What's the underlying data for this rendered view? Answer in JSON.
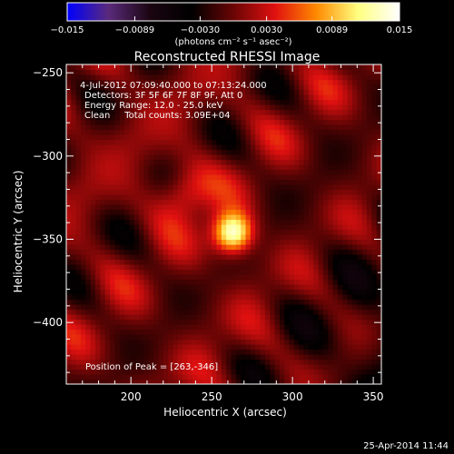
{
  "footer": {
    "timestamp": "25-Apr-2014 11:44"
  },
  "chart_data": {
    "type": "heatmap",
    "title": "Reconstructed RHESSI Image",
    "xlabel": "Heliocentric X (arcsec)",
    "ylabel": "Heliocentric Y (arcsec)",
    "xlim": [
      160,
      355
    ],
    "ylim": [
      -437,
      -245
    ],
    "x_ticks": [
      200,
      250,
      300,
      350
    ],
    "y_ticks": [
      -400,
      -350,
      -300,
      -250
    ],
    "x_tick_labels": [
      "200",
      "250",
      "300",
      "350"
    ],
    "y_tick_labels": [
      "−400",
      "−350",
      "−300",
      "−250"
    ],
    "colorbar": {
      "range": [
        -0.015,
        0.015
      ],
      "ticks": [
        -0.015,
        -0.0089,
        -0.003,
        0.003,
        0.0089,
        0.015
      ],
      "tick_labels": [
        "−0.015",
        "−0.0089",
        "−0.0030",
        "0.0030",
        "0.0089",
        "0.015"
      ],
      "unit_label": "(photons cm⁻² s⁻¹ asec⁻²)",
      "colors": [
        "#0000ff",
        "#5a2a7a",
        "#1a0510",
        "#000000",
        "#6a0505",
        "#e01010",
        "#ff8a00",
        "#ffff80",
        "#ffffff"
      ]
    },
    "annotations": [
      "4-Jul-2012 07:09:40.000 to 07:13:24.000",
      "Detectors: 3F 5F 6F 7F 8F 9F, Att 0",
      "Energy Range: 12.0 - 25.0 keV",
      "Clean     Total counts: 3.09E+04"
    ],
    "peak_label": "Position of Peak = [263,-346]",
    "peak": {
      "x": 263,
      "y": -346,
      "value": 0.015
    },
    "secondary_source": {
      "x": 233,
      "y": -322,
      "value": 0.006
    }
  }
}
